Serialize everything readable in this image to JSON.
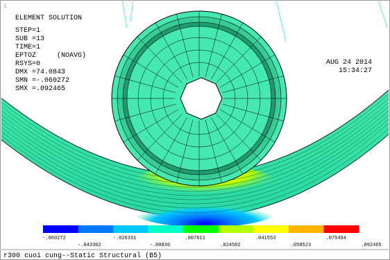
{
  "viewport_label": "1",
  "header": {
    "title": "ELEMENT SOLUTION",
    "info": [
      "STEP=1",
      "SUB =13",
      "TIME=1",
      "EPTOZ     (NOAVG)",
      "RSYS=0",
      "DMX =74.0843",
      "SMN =-.060272",
      "SMX =.092465"
    ]
  },
  "timestamp": {
    "date": "AUG 24 2014",
    "time": "15:34:27"
  },
  "legend": {
    "colors": [
      "#0000ff",
      "#0078ff",
      "#00c8ff",
      "#00ffc8",
      "#00ff00",
      "#b4ff00",
      "#ffff00",
      "#ffb400",
      "#ff0000"
    ],
    "labels": [
      "-.060272",
      "-.043302",
      "-.026331",
      "-.00936",
      ".007611",
      ".024582",
      ".041553",
      ".058523",
      ".075494",
      ".092465"
    ]
  },
  "footer": "r300 cuoi cung--Static Structural (B5)"
}
